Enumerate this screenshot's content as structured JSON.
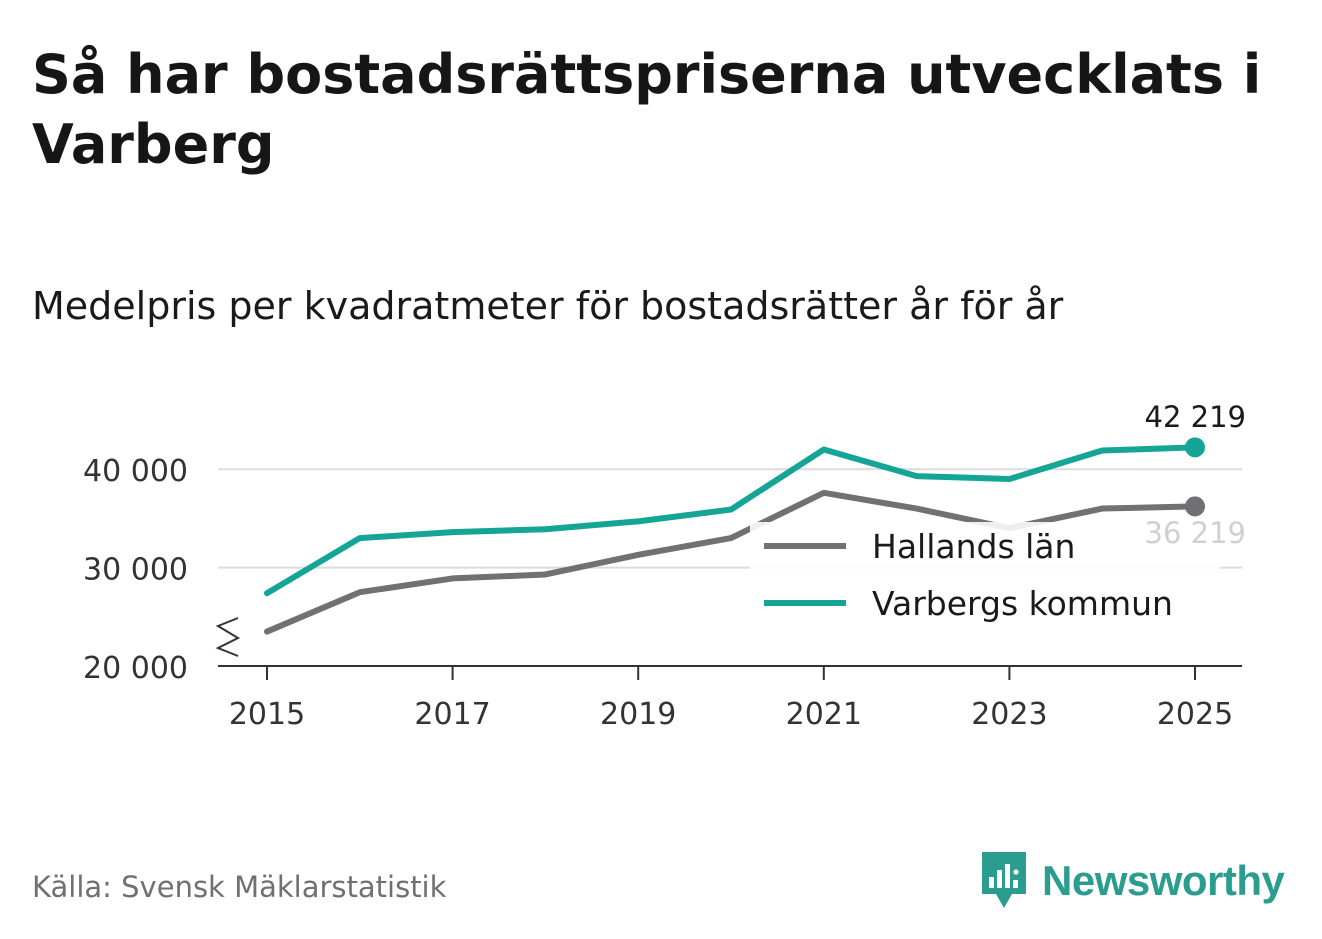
{
  "title": "Så har bostadsrättspriserna utvecklats i Varberg",
  "subtitle": "Medelpris per kvadratmeter för bostadsrätter år för år",
  "source": "Källa: Svensk Mäklarstatistik",
  "brand": {
    "name": "Newsworthy",
    "icon": "newsworthy-logo-icon",
    "color": "#2a9d8f"
  },
  "chart_data": {
    "type": "line",
    "x": [
      2015,
      2016,
      2017,
      2018,
      2019,
      2020,
      2021,
      2022,
      2023,
      2024,
      2025
    ],
    "xticks": [
      2015,
      2017,
      2019,
      2021,
      2023,
      2025
    ],
    "xtick_labels": [
      "2015",
      "2017",
      "2019",
      "2021",
      "2023",
      "2025"
    ],
    "yticks": [
      20000,
      30000,
      40000
    ],
    "ytick_labels": [
      "20 000",
      "30 000",
      "40 000"
    ],
    "ylim": [
      20000,
      45000
    ],
    "axis_break": true,
    "grid": true,
    "series": [
      {
        "name": "Hallands län",
        "color": "#707075",
        "values": [
          23500,
          27500,
          28900,
          29300,
          31300,
          33000,
          37600,
          36000,
          34000,
          36000,
          36219
        ],
        "end_label": "36 219"
      },
      {
        "name": "Varbergs kommun",
        "color": "#14a597",
        "values": [
          27400,
          33000,
          33600,
          33900,
          34700,
          35900,
          42000,
          39300,
          39000,
          41900,
          42219
        ],
        "end_label": "42 219"
      }
    ],
    "legend": {
      "position": "right",
      "entries": [
        "Hallands län",
        "Varbergs kommun"
      ]
    }
  }
}
